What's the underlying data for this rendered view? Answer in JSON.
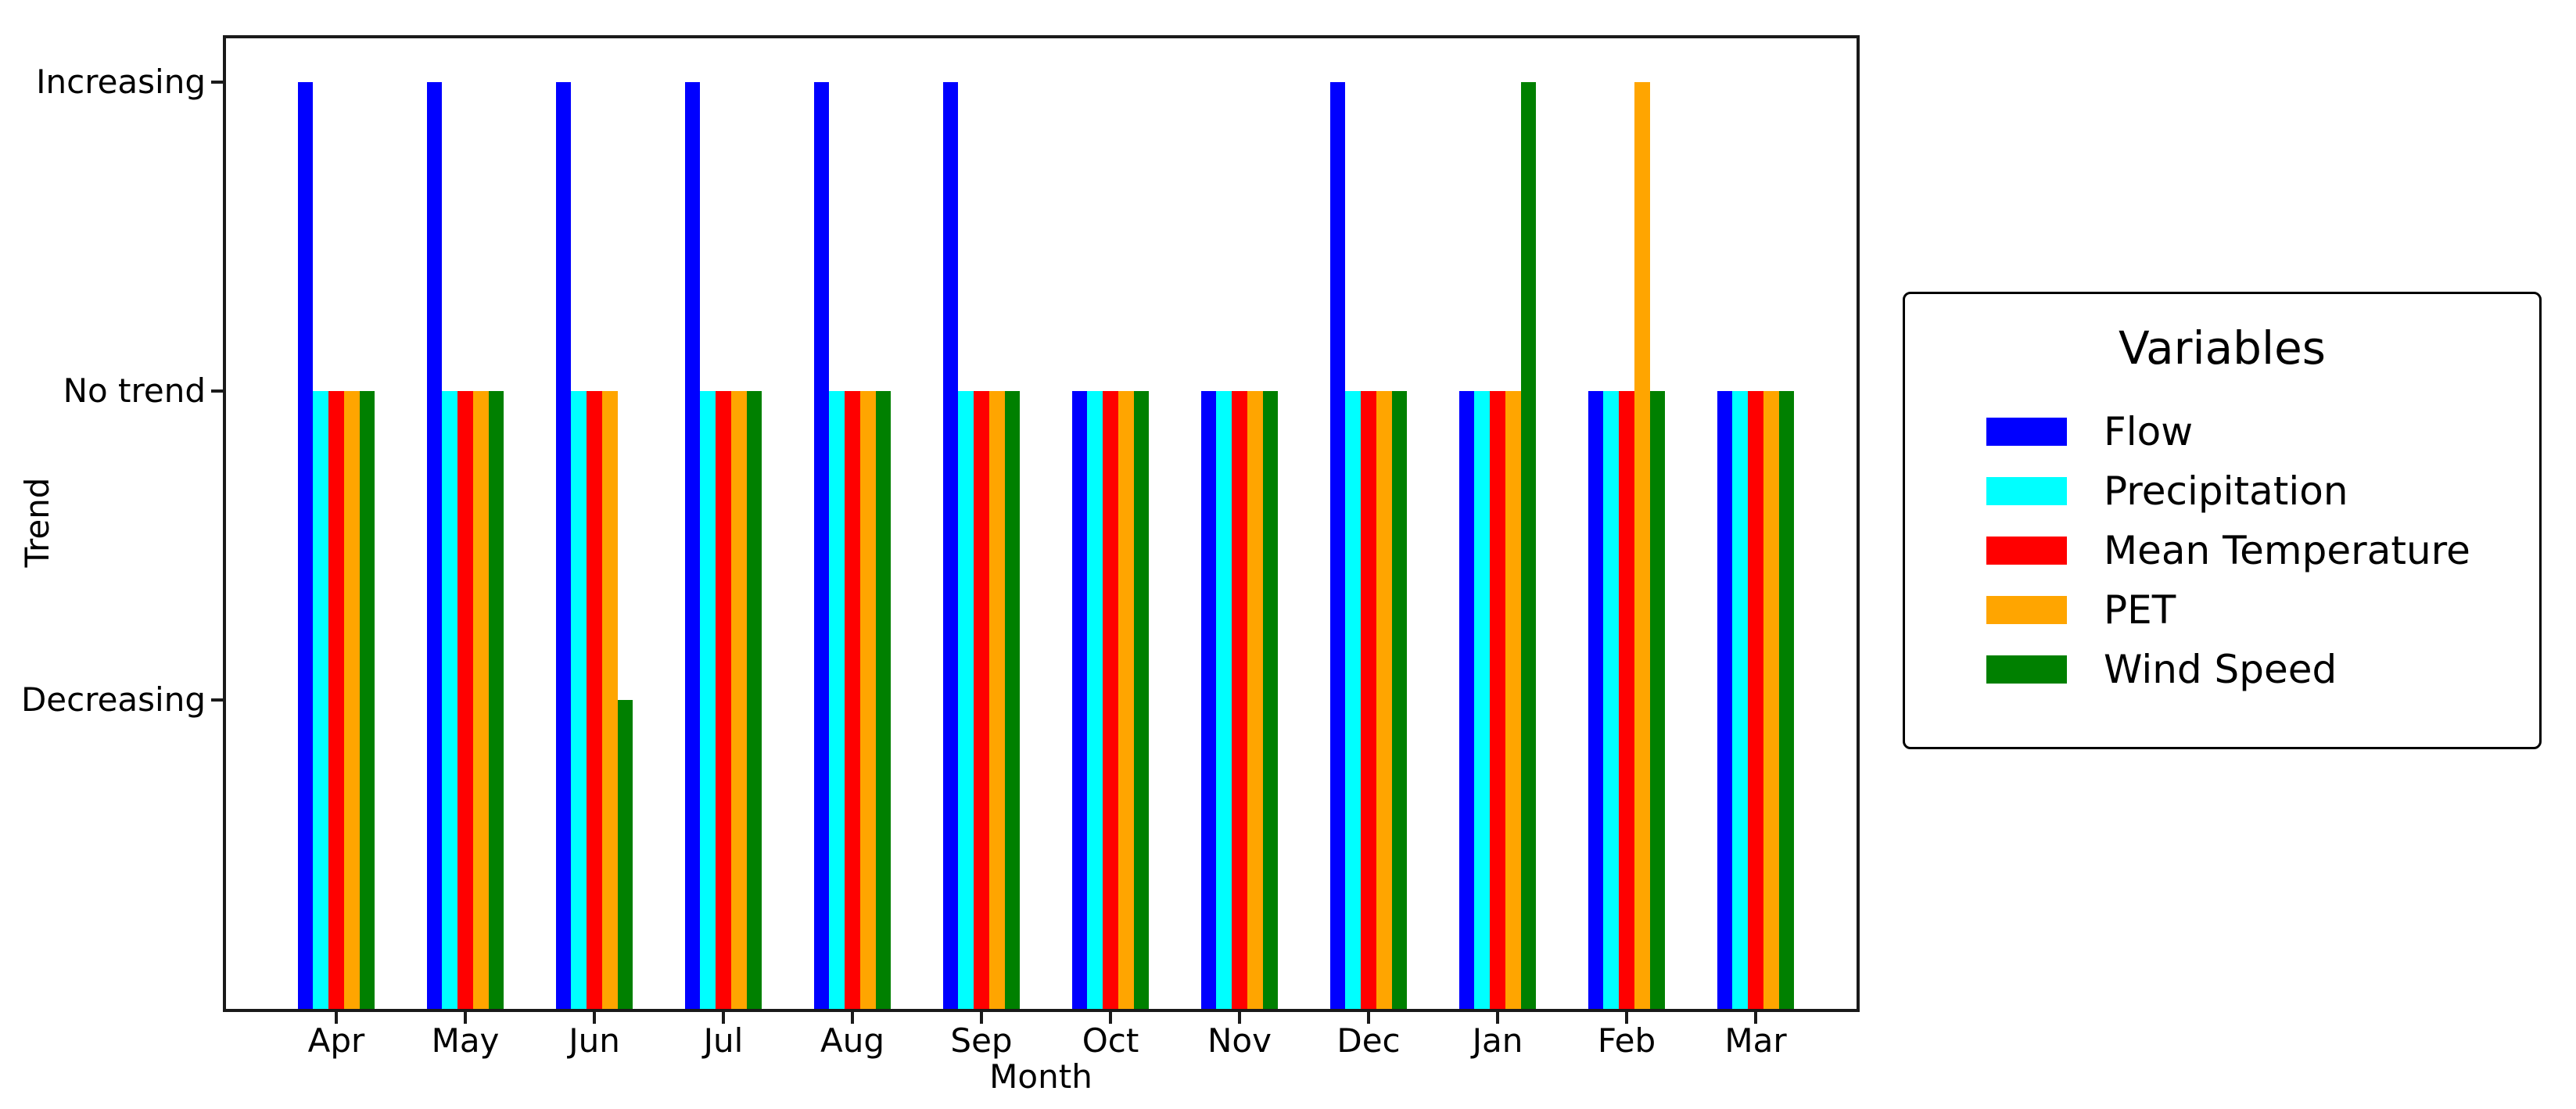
{
  "figure": {
    "background": "#FFFFFF",
    "y_axis": {
      "label": "Trend",
      "tick_labels": [
        "Increasing",
        "No trend",
        "Decreasing"
      ]
    },
    "x_axis": {
      "label": "Month",
      "tick_labels": [
        "Apr",
        "May",
        "Jun",
        "Jul",
        "Aug",
        "Sep",
        "Oct",
        "Nov",
        "Dec",
        "Jan",
        "Feb",
        "Mar"
      ]
    },
    "legend": {
      "title": "Variables"
    }
  },
  "chart_data": {
    "type": "bar",
    "title": "",
    "xlabel": "Month",
    "ylabel": "Trend",
    "categories": [
      "Apr",
      "May",
      "Jun",
      "Jul",
      "Aug",
      "Sep",
      "Oct",
      "Nov",
      "Dec",
      "Jan",
      "Feb",
      "Mar"
    ],
    "y_tick_labels": [
      "Increasing",
      "No trend",
      "Decreasing"
    ],
    "y_value_map": {
      "Increasing": 3,
      "No trend": 2,
      "Decreasing": 1
    },
    "ylim": [
      0,
      3.15
    ],
    "bar_baseline": 0,
    "grid": false,
    "legend_position": "right-of-plot",
    "legend_title": "Variables",
    "series": [
      {
        "name": "Flow",
        "color": "#0000FF",
        "values": [
          3,
          3,
          3,
          3,
          3,
          3,
          2,
          2,
          3,
          2,
          2,
          2
        ]
      },
      {
        "name": "Precipitation",
        "color": "#00FFFF",
        "values": [
          2,
          2,
          2,
          2,
          2,
          2,
          2,
          2,
          2,
          2,
          2,
          2
        ]
      },
      {
        "name": "Mean Temperature",
        "color": "#FF0000",
        "values": [
          2,
          2,
          2,
          2,
          2,
          2,
          2,
          2,
          2,
          2,
          2,
          2
        ]
      },
      {
        "name": "PET",
        "color": "#FFA500",
        "values": [
          2,
          2,
          2,
          2,
          2,
          2,
          2,
          2,
          2,
          2,
          3,
          2
        ]
      },
      {
        "name": "Wind Speed",
        "color": "#008000",
        "values": [
          2,
          2,
          1,
          2,
          2,
          2,
          2,
          2,
          2,
          3,
          2,
          2
        ]
      }
    ]
  }
}
